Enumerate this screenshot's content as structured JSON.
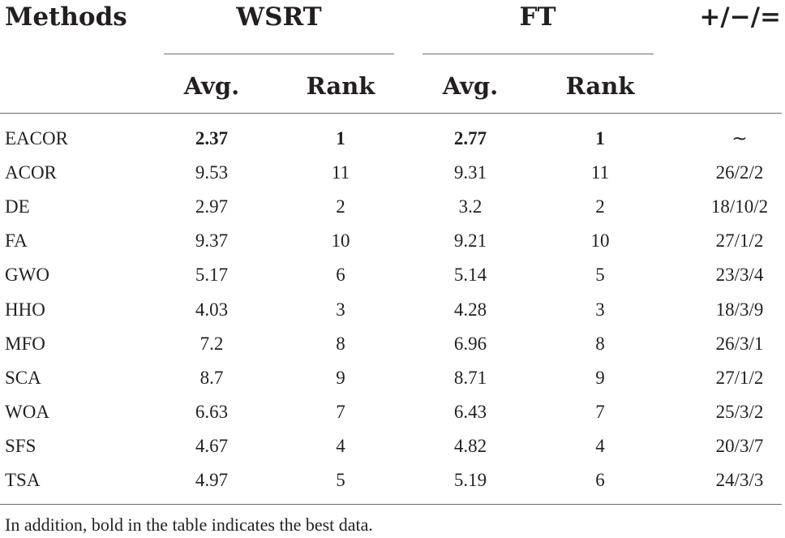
{
  "headers": {
    "methods": "Methods",
    "wsrt": "WSRT",
    "ft": "FT",
    "pm": "+/−/=",
    "avg": "Avg.",
    "rank": "Rank"
  },
  "rows": [
    {
      "method": "EACOR",
      "wsrt_avg": "2.37",
      "wsrt_rank": "1",
      "ft_avg": "2.77",
      "ft_rank": "1",
      "pm": "∼"
    },
    {
      "method": "ACOR",
      "wsrt_avg": "9.53",
      "wsrt_rank": "11",
      "ft_avg": "9.31",
      "ft_rank": "11",
      "pm": "26/2/2"
    },
    {
      "method": "DE",
      "wsrt_avg": "2.97",
      "wsrt_rank": "2",
      "ft_avg": "3.2",
      "ft_rank": "2",
      "pm": "18/10/2"
    },
    {
      "method": "FA",
      "wsrt_avg": "9.37",
      "wsrt_rank": "10",
      "ft_avg": "9.21",
      "ft_rank": "10",
      "pm": "27/1/2"
    },
    {
      "method": "GWO",
      "wsrt_avg": "5.17",
      "wsrt_rank": "6",
      "ft_avg": "5.14",
      "ft_rank": "5",
      "pm": "23/3/4"
    },
    {
      "method": "HHO",
      "wsrt_avg": "4.03",
      "wsrt_rank": "3",
      "ft_avg": "4.28",
      "ft_rank": "3",
      "pm": "18/3/9"
    },
    {
      "method": "MFO",
      "wsrt_avg": "7.2",
      "wsrt_rank": "8",
      "ft_avg": "6.96",
      "ft_rank": "8",
      "pm": "26/3/1"
    },
    {
      "method": "SCA",
      "wsrt_avg": "8.7",
      "wsrt_rank": "9",
      "ft_avg": "8.71",
      "ft_rank": "9",
      "pm": "27/1/2"
    },
    {
      "method": "WOA",
      "wsrt_avg": "6.63",
      "wsrt_rank": "7",
      "ft_avg": "6.43",
      "ft_rank": "7",
      "pm": "25/3/2"
    },
    {
      "method": "SFS",
      "wsrt_avg": "4.67",
      "wsrt_rank": "4",
      "ft_avg": "4.82",
      "ft_rank": "4",
      "pm": "20/3/7"
    },
    {
      "method": "TSA",
      "wsrt_avg": "4.97",
      "wsrt_rank": "5",
      "ft_avg": "5.19",
      "ft_rank": "6",
      "pm": "24/3/3"
    }
  ],
  "footnote": "In addition, bold in the table indicates the best data."
}
